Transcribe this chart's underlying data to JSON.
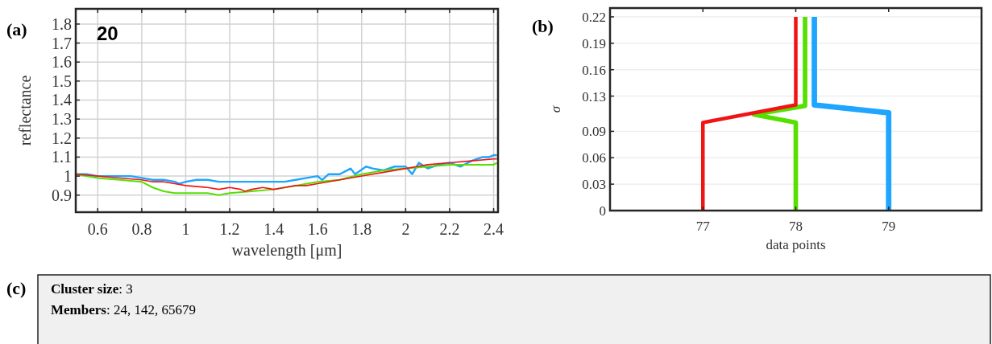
{
  "chart_data": [
    {
      "type": "line",
      "title": "(a)",
      "xlabel": "wavelength [μm]",
      "ylabel": "reflectance",
      "annotations": [
        "20"
      ],
      "xlim": [
        0.5,
        2.42
      ],
      "ylim": [
        0.81,
        1.88
      ],
      "xticks": [
        0.6,
        0.8,
        1,
        1.2,
        1.4,
        1.6,
        1.8,
        2,
        2.2,
        2.4
      ],
      "yticks": [
        0.9,
        1,
        1.1,
        1.2,
        1.3,
        1.4,
        1.5,
        1.6,
        1.7,
        1.8
      ],
      "grid": true,
      "series": [
        {
          "color": "#1ea5ff",
          "x": [
            0.5,
            0.55,
            0.6,
            0.65,
            0.7,
            0.75,
            0.8,
            0.85,
            0.9,
            0.95,
            0.97,
            1.0,
            1.05,
            1.1,
            1.15,
            1.2,
            1.25,
            1.3,
            1.35,
            1.4,
            1.45,
            1.5,
            1.55,
            1.6,
            1.62,
            1.65,
            1.7,
            1.75,
            1.77,
            1.82,
            1.85,
            1.9,
            1.95,
            2.0,
            2.03,
            2.06,
            2.1,
            2.15,
            2.2,
            2.25,
            2.3,
            2.35,
            2.38,
            2.4,
            2.415
          ],
          "values": [
            1.01,
            1.01,
            1.0,
            1.0,
            1.0,
            1.0,
            0.99,
            0.98,
            0.98,
            0.97,
            0.96,
            0.97,
            0.98,
            0.98,
            0.97,
            0.97,
            0.97,
            0.97,
            0.97,
            0.97,
            0.97,
            0.98,
            0.99,
            1.0,
            0.98,
            1.01,
            1.01,
            1.04,
            1.01,
            1.05,
            1.04,
            1.03,
            1.05,
            1.05,
            1.01,
            1.07,
            1.04,
            1.06,
            1.07,
            1.05,
            1.08,
            1.1,
            1.1,
            1.11,
            1.11
          ]
        },
        {
          "color": "#55e000",
          "x": [
            0.5,
            0.6,
            0.7,
            0.8,
            0.85,
            0.9,
            0.95,
            1.0,
            1.1,
            1.15,
            1.2,
            1.3,
            1.4,
            1.5,
            1.6,
            1.7,
            1.8,
            1.9,
            2.0,
            2.1,
            2.2,
            2.3,
            2.4,
            2.415
          ],
          "values": [
            1.01,
            0.99,
            0.98,
            0.97,
            0.94,
            0.92,
            0.91,
            0.91,
            0.91,
            0.9,
            0.91,
            0.92,
            0.93,
            0.95,
            0.97,
            0.98,
            1.01,
            1.03,
            1.04,
            1.05,
            1.06,
            1.06,
            1.06,
            1.07
          ]
        },
        {
          "color": "#f01414",
          "x": [
            0.5,
            0.6,
            0.7,
            0.8,
            0.85,
            0.9,
            0.95,
            1.0,
            1.1,
            1.15,
            1.2,
            1.25,
            1.27,
            1.3,
            1.35,
            1.4,
            1.45,
            1.5,
            1.55,
            1.6,
            1.7,
            1.8,
            1.9,
            2.0,
            2.05,
            2.1,
            2.2,
            2.3,
            2.4,
            2.415
          ],
          "values": [
            1.01,
            1.0,
            0.99,
            0.98,
            0.97,
            0.97,
            0.96,
            0.95,
            0.94,
            0.93,
            0.94,
            0.93,
            0.92,
            0.93,
            0.94,
            0.93,
            0.94,
            0.95,
            0.95,
            0.96,
            0.98,
            1.0,
            1.02,
            1.04,
            1.05,
            1.06,
            1.07,
            1.08,
            1.09,
            1.09
          ]
        }
      ]
    },
    {
      "type": "line",
      "title": "(b)",
      "xlabel": "data points",
      "ylabel": "σ",
      "xlim": [
        76,
        80
      ],
      "ylim": [
        0,
        0.23
      ],
      "xticks": [
        77,
        78,
        79
      ],
      "yticks": [
        0,
        0.03,
        0.06,
        0.09,
        0.13,
        0.16,
        0.19,
        0.22
      ],
      "grid": "y",
      "series": [
        {
          "color": "#1ea5ff",
          "x": [
            79,
            79,
            78.2,
            78.2
          ],
          "values": [
            0,
            0.111,
            0.12,
            0.22
          ]
        },
        {
          "color": "#55e000",
          "x": [
            78,
            78,
            77.55,
            78.1,
            78.1
          ],
          "values": [
            0,
            0.1,
            0.109,
            0.119,
            0.22
          ]
        },
        {
          "color": "#f01414",
          "x": [
            77,
            77,
            78,
            78
          ],
          "values": [
            0,
            0.1,
            0.12,
            0.22
          ]
        }
      ]
    },
    {
      "type": "other",
      "title": "(c)",
      "annotations": [
        "Cluster size: 3",
        "Members: 24, 142, 65679"
      ]
    }
  ]
}
